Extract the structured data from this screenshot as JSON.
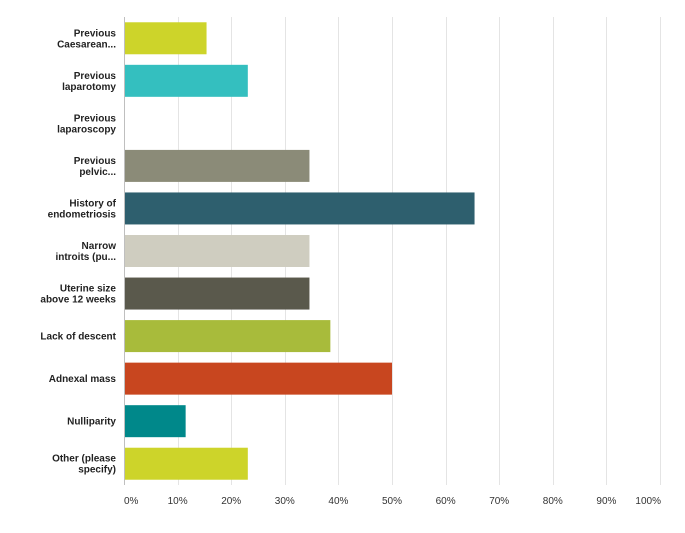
{
  "chart_data": {
    "type": "bar",
    "orientation": "horizontal",
    "categories": [
      [
        "Previous",
        "Caesarean..."
      ],
      [
        "Previous",
        "laparotomy"
      ],
      [
        "Previous",
        "laparoscopy"
      ],
      [
        "Previous",
        "pelvic..."
      ],
      [
        "History of",
        "endometriosis"
      ],
      [
        "Narrow",
        "introits (pu..."
      ],
      [
        "Uterine size",
        "above 12 weeks"
      ],
      [
        "Lack of descent"
      ],
      [
        "Adnexal mass"
      ],
      [
        "Nulliparity"
      ],
      [
        "Other (please",
        "specify)"
      ]
    ],
    "values": [
      15.4,
      23.1,
      0,
      34.6,
      65.4,
      34.6,
      34.6,
      38.5,
      50.0,
      11.5,
      23.1
    ],
    "colors": [
      "#cdd42a",
      "#34bfbf",
      "#cccccc",
      "#8b8b78",
      "#2e5f6e",
      "#cfcdc0",
      "#5a594c",
      "#a8bb3b",
      "#c8461f",
      "#00888a",
      "#cdd42a"
    ],
    "x_ticks": [
      "0%",
      "10%",
      "20%",
      "30%",
      "40%",
      "50%",
      "60%",
      "70%",
      "80%",
      "90%",
      "100%"
    ],
    "xlim": [
      0,
      100
    ],
    "grid": true,
    "legend": "none",
    "title": "",
    "xlabel": "",
    "ylabel": ""
  }
}
